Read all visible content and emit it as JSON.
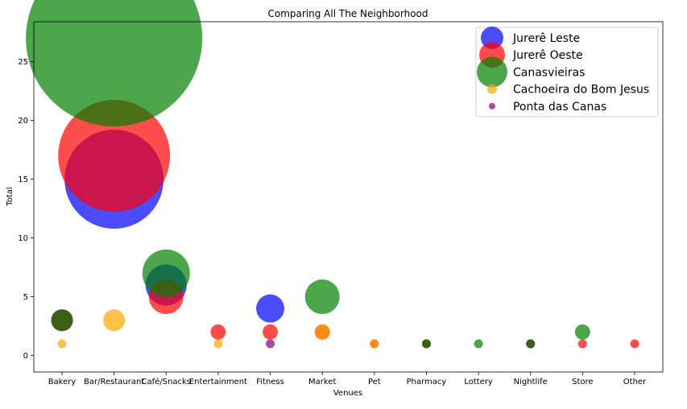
{
  "chart_data": {
    "type": "scatter",
    "title": "Comparing All The Neighborhood",
    "xlabel": "Venues",
    "ylabel": "Total",
    "categories": [
      "Bakery",
      "Bar/Restaurant",
      "Café/Snacks",
      "Entertainment",
      "Fitness",
      "Market",
      "Pet",
      "Pharmacy",
      "Lottery",
      "Nightlife",
      "Store",
      "Other"
    ],
    "ylim": [
      -1.4,
      28.4
    ],
    "yticks": [
      0,
      5,
      10,
      15,
      20,
      25
    ],
    "grid": false,
    "legend_position": "top-right",
    "series": [
      {
        "name": "Jurerê Leste",
        "color": "#0000ff",
        "values": [
          3,
          15,
          6,
          null,
          4,
          null,
          null,
          1,
          null,
          1,
          null,
          null
        ]
      },
      {
        "name": "Jurerê Oeste",
        "color": "#ff0000",
        "values": [
          3,
          17,
          5,
          2,
          2,
          2,
          1,
          1,
          null,
          1,
          1,
          1
        ]
      },
      {
        "name": "Canasvieiras",
        "color": "#008000",
        "values": [
          3,
          27,
          7,
          null,
          null,
          5,
          null,
          1,
          1,
          1,
          2,
          null
        ]
      },
      {
        "name": "Cachoeira do Bom Jesus",
        "color": "#ffa500",
        "values": [
          1,
          3,
          null,
          1,
          null,
          2,
          1,
          null,
          null,
          null,
          null,
          null
        ]
      },
      {
        "name": "Ponta das Canas",
        "color": "#800080",
        "values": [
          null,
          null,
          null,
          null,
          1,
          null,
          null,
          null,
          null,
          null,
          null,
          null
        ]
      }
    ]
  }
}
